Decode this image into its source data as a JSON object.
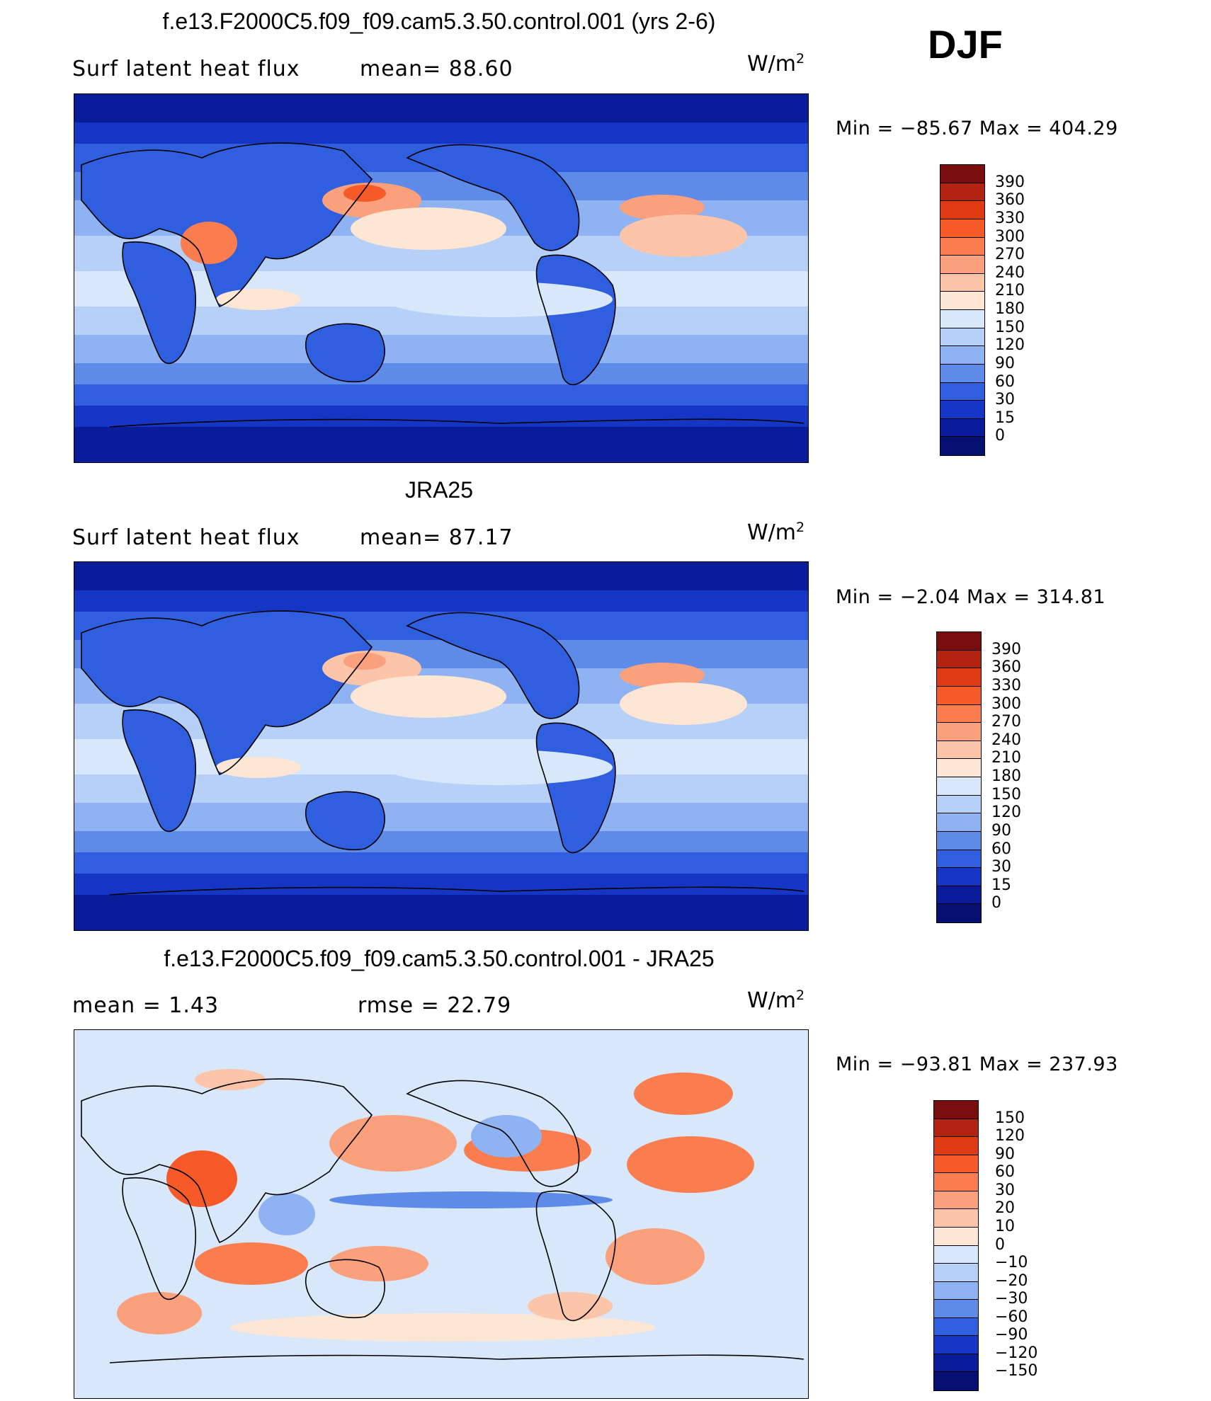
{
  "season": "DJF",
  "unit_base": "W/m",
  "unit_exp": "2",
  "panels": [
    {
      "id": "model",
      "title": "f.e13.F2000C5.f09_f09.cam5.3.50.control.001 (yrs 2-6)",
      "left_text": "Surf  latent  heat  flux",
      "mid_text": "mean=   88.60",
      "minmax": "Min  =  −85.67  Max  =  404.29",
      "levels": [
        "390",
        "360",
        "330",
        "300",
        "270",
        "240",
        "210",
        "180",
        "150",
        "120",
        "90",
        "60",
        "30",
        "15",
        "0"
      ],
      "colors": [
        "#7a0d0d",
        "#b2240f",
        "#e03a14",
        "#f55a28",
        "#f97d4f",
        "#fba07c",
        "#fcc4a8",
        "#fde6d4",
        "#d8e8fa",
        "#b7d0f7",
        "#8fb2f2",
        "#5e8ae8",
        "#2f5fde",
        "#1536c4",
        "#0a1c9a",
        "#061070"
      ],
      "style": "abs"
    },
    {
      "id": "obs",
      "title": "JRA25",
      "left_text": "Surf  latent  heat  flux",
      "mid_text": "mean=   87.17",
      "minmax": "Min  =    −2.04  Max  =  314.81",
      "levels": [
        "390",
        "360",
        "330",
        "300",
        "270",
        "240",
        "210",
        "180",
        "150",
        "120",
        "90",
        "60",
        "30",
        "15",
        "0"
      ],
      "colors": [
        "#7a0d0d",
        "#b2240f",
        "#e03a14",
        "#f55a28",
        "#f97d4f",
        "#fba07c",
        "#fcc4a8",
        "#fde6d4",
        "#d8e8fa",
        "#b7d0f7",
        "#8fb2f2",
        "#5e8ae8",
        "#2f5fde",
        "#1536c4",
        "#0a1c9a",
        "#061070"
      ],
      "style": "abs"
    },
    {
      "id": "diff",
      "title": "f.e13.F2000C5.f09_f09.cam5.3.50.control.001 - JRA25",
      "left_text": "mean  =      1.43",
      "mid_text": "rmse  =     22.79",
      "minmax": "Min  =  −93.81  Max  =  237.93",
      "levels": [
        "150",
        "120",
        "90",
        "60",
        "30",
        "20",
        "10",
        "0",
        "−10",
        "−20",
        "−30",
        "−60",
        "−90",
        "−120",
        "−150"
      ],
      "colors": [
        "#7a0d0d",
        "#b2240f",
        "#e03a14",
        "#f55a28",
        "#f97d4f",
        "#fba07c",
        "#fcc4a8",
        "#fde6d4",
        "#d8e8fa",
        "#b7d0f7",
        "#8fb2f2",
        "#5e8ae8",
        "#2f5fde",
        "#1536c4",
        "#0a1c9a",
        "#061070"
      ],
      "style": "diff"
    }
  ]
}
